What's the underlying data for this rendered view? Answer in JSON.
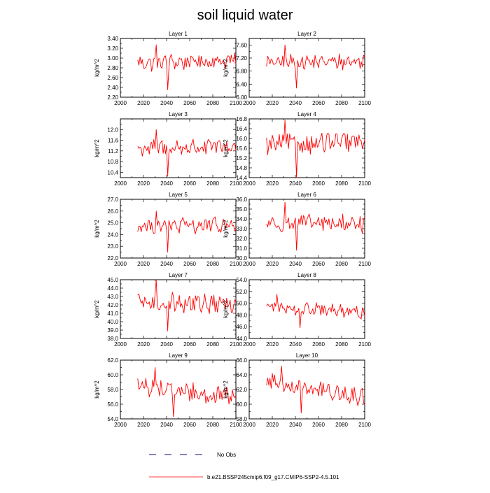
{
  "title": "soil liquid water",
  "legend": {
    "obs_label": "No Obs",
    "model_label": "b.e21.BSSP245cmip6.f09_g17.CMIP6-SSP2-4.5.101",
    "model_color": "#ff0000"
  },
  "chart_data": [
    {
      "type": "line",
      "title": "Layer 1",
      "ylabel": "kg/m^2",
      "xlim": [
        2000,
        2100
      ],
      "ylim": [
        2.2,
        3.4
      ],
      "xticks": [
        "2000",
        "2020",
        "2040",
        "2060",
        "2080",
        "2100"
      ],
      "yticks": [
        "2.20",
        "2.40",
        "2.60",
        "2.80",
        "3.00",
        "3.20",
        "3.40"
      ],
      "y_start": 2.9,
      "y_end": 2.95,
      "min": 2.35,
      "max": 3.27,
      "dip_year": 2041,
      "peak_year": 2031,
      "series": [
        {
          "name": "b.e21.BSSP245cmip6.f09_g17.CMIP6-SSP2-4.5.101",
          "color": "#ff0000"
        }
      ]
    },
    {
      "type": "line",
      "title": "Layer 2",
      "ylabel": "kg/m^2",
      "xlim": [
        2000,
        2100
      ],
      "ylim": [
        6.0,
        7.8
      ],
      "xticks": [
        "2000",
        "2020",
        "2040",
        "2060",
        "2080",
        "2100"
      ],
      "yticks": [
        "6.00",
        "6.40",
        "6.80",
        "7.20",
        "7.60"
      ],
      "y_start": 7.05,
      "y_end": 7.1,
      "min": 6.28,
      "max": 7.6,
      "dip_year": 2041,
      "peak_year": 2031,
      "series": [
        {
          "name": "b.e21.BSSP245cmip6.f09_g17.CMIP6-SSP2-4.5.101",
          "color": "#ff0000"
        }
      ]
    },
    {
      "type": "line",
      "title": "Layer 3",
      "ylabel": "kg/m^2",
      "xlim": [
        2000,
        2100
      ],
      "ylim": [
        10.2,
        12.4
      ],
      "xticks": [
        "2000",
        "2020",
        "2040",
        "2060",
        "2080",
        "2100"
      ],
      "yticks": [
        "10.4",
        "10.8",
        "11.2",
        "11.6",
        "12.0"
      ],
      "y_start": 11.3,
      "y_end": 11.35,
      "min": 10.25,
      "max": 12.0,
      "dip_year": 2041,
      "peak_year": 2031,
      "series": [
        {
          "name": "b.e21.BSSP245cmip6.f09_g17.CMIP6-SSP2-4.5.101",
          "color": "#ff0000"
        }
      ]
    },
    {
      "type": "line",
      "title": "Layer 4",
      "ylabel": "kg/m^2",
      "xlim": [
        2000,
        2100
      ],
      "ylim": [
        14.4,
        16.8
      ],
      "xticks": [
        "2000",
        "2020",
        "2040",
        "2060",
        "2080",
        "2100"
      ],
      "yticks": [
        "14.4",
        "14.8",
        "15.2",
        "15.6",
        "16.0",
        "16.4",
        "16.8"
      ],
      "y_start": 15.75,
      "y_end": 15.85,
      "min": 14.4,
      "max": 16.75,
      "dip_year": 2041,
      "peak_year": 2031,
      "series": [
        {
          "name": "b.e21.BSSP245cmip6.f09_g17.CMIP6-SSP2-4.5.101",
          "color": "#ff0000"
        }
      ]
    },
    {
      "type": "line",
      "title": "Layer 5",
      "ylabel": "kg/m^2",
      "xlim": [
        2000,
        2100
      ],
      "ylim": [
        22.0,
        27.0
      ],
      "xticks": [
        "2000",
        "2020",
        "2040",
        "2060",
        "2080",
        "2100"
      ],
      "yticks": [
        "22.0",
        "23.0",
        "24.0",
        "25.0",
        "26.0",
        "27.0"
      ],
      "y_start": 24.7,
      "y_end": 24.8,
      "min": 22.5,
      "max": 26.0,
      "dip_year": 2041,
      "peak_year": 2031,
      "series": [
        {
          "name": "b.e21.BSSP245cmip6.f09_g17.CMIP6-SSP2-4.5.101",
          "color": "#ff0000"
        }
      ]
    },
    {
      "type": "line",
      "title": "Layer 6",
      "ylabel": "kg/m^2",
      "xlim": [
        2000,
        2100
      ],
      "ylim": [
        30.0,
        36.0
      ],
      "xticks": [
        "2000",
        "2020",
        "2040",
        "2060",
        "2080",
        "2100"
      ],
      "yticks": [
        "30.0",
        "31.0",
        "32.0",
        "33.0",
        "34.0",
        "35.0",
        "36.0"
      ],
      "y_start": 33.6,
      "y_end": 33.5,
      "min": 30.8,
      "max": 35.7,
      "dip_year": 2041,
      "peak_year": 2031,
      "series": [
        {
          "name": "b.e21.BSSP245cmip6.f09_g17.CMIP6-SSP2-4.5.101",
          "color": "#ff0000"
        }
      ]
    },
    {
      "type": "line",
      "title": "Layer 7",
      "ylabel": "kg/m^2",
      "xlim": [
        2000,
        2100
      ],
      "ylim": [
        38.0,
        45.0
      ],
      "xticks": [
        "2000",
        "2020",
        "2040",
        "2060",
        "2080",
        "2100"
      ],
      "yticks": [
        "38.0",
        "39.0",
        "40.0",
        "41.0",
        "42.0",
        "43.0",
        "44.0",
        "45.0"
      ],
      "y_start": 42.3,
      "y_end": 42.1,
      "min": 38.9,
      "max": 45.0,
      "dip_year": 2041,
      "peak_year": 2031,
      "series": [
        {
          "name": "b.e21.BSSP245cmip6.f09_g17.CMIP6-SSP2-4.5.101",
          "color": "#ff0000"
        }
      ]
    },
    {
      "type": "line",
      "title": "Layer 8",
      "ylabel": "kg/m^2",
      "xlim": [
        2000,
        2100
      ],
      "ylim": [
        44.0,
        54.0
      ],
      "xticks": [
        "2000",
        "2020",
        "2040",
        "2060",
        "2080",
        "2100"
      ],
      "yticks": [
        "44.0",
        "46.0",
        "48.0",
        "50.0",
        "52.0",
        "54.0"
      ],
      "y_start": 49.5,
      "y_end": 48.3,
      "min": 45.8,
      "max": 51.5,
      "dip_year": 2044,
      "peak_year": 2024,
      "series": [
        {
          "name": "b.e21.BSSP245cmip6.f09_g17.CMIP6-SSP2-4.5.101",
          "color": "#ff0000"
        }
      ]
    },
    {
      "type": "line",
      "title": "Layer 9",
      "ylabel": "kg/m^2",
      "xlim": [
        2000,
        2100
      ],
      "ylim": [
        54.0,
        62.0
      ],
      "xticks": [
        "2000",
        "2020",
        "2040",
        "2060",
        "2080",
        "2100"
      ],
      "yticks": [
        "54.0",
        "56.0",
        "58.0",
        "60.0",
        "62.0"
      ],
      "y_start": 58.6,
      "y_end": 56.8,
      "min": 54.3,
      "max": 61.0,
      "dip_year": 2046,
      "peak_year": 2030,
      "series": [
        {
          "name": "b.e21.BSSP245cmip6.f09_g17.CMIP6-SSP2-4.5.101",
          "color": "#ff0000"
        }
      ]
    },
    {
      "type": "line",
      "title": "Layer 10",
      "ylabel": "kg/m^2",
      "xlim": [
        2000,
        2100
      ],
      "ylim": [
        58.0,
        66.0
      ],
      "xticks": [
        "2000",
        "2020",
        "2040",
        "2060",
        "2080",
        "2100"
      ],
      "yticks": [
        "58.0",
        "60.0",
        "62.0",
        "64.0",
        "66.0"
      ],
      "y_start": 63.2,
      "y_end": 60.8,
      "min": 58.8,
      "max": 65.2,
      "dip_year": 2045,
      "peak_year": 2028,
      "series": [
        {
          "name": "b.e21.BSSP245cmip6.f09_g17.CMIP6-SSP2-4.5.101",
          "color": "#ff0000"
        }
      ]
    }
  ]
}
